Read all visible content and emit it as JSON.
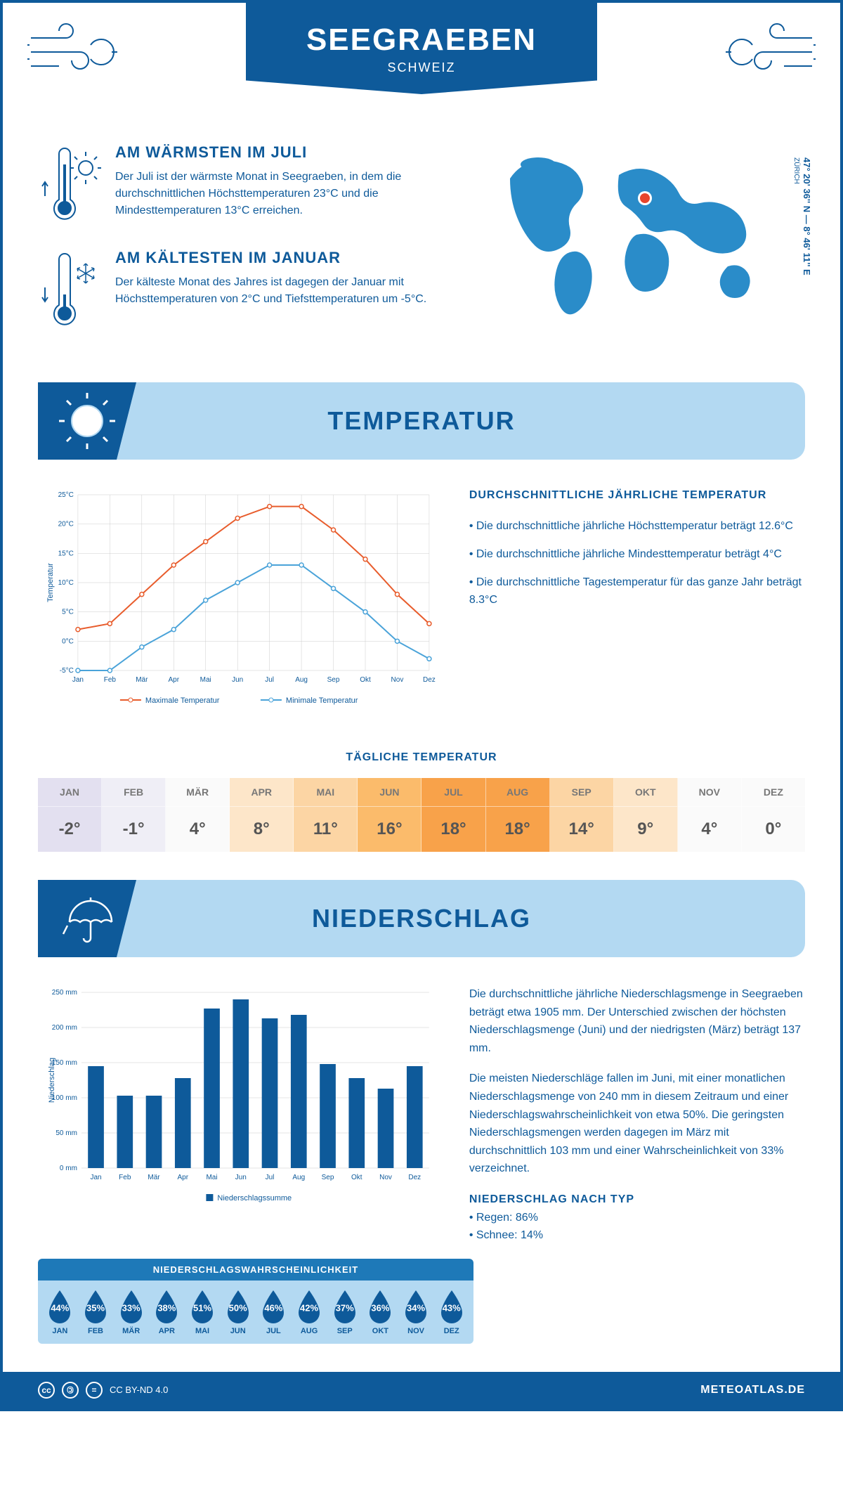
{
  "header": {
    "title": "SEEGRAEBEN",
    "subtitle": "SCHWEIZ",
    "coords": "47° 20' 36'' N — 8° 46' 11'' E",
    "coords_city": "ZÜRICH"
  },
  "warmest": {
    "title": "AM WÄRMSTEN IM JULI",
    "desc": "Der Juli ist der wärmste Monat in Seegraeben, in dem die durchschnittlichen Höchsttemperaturen 23°C und die Mindesttemperaturen 13°C erreichen."
  },
  "coldest": {
    "title": "AM KÄLTESTEN IM JANUAR",
    "desc": "Der kälteste Monat des Jahres ist dagegen der Januar mit Höchsttemperaturen von 2°C und Tiefsttemperaturen um -5°C."
  },
  "temp_section": {
    "title": "TEMPERATUR",
    "chart": {
      "type": "line",
      "months": [
        "Jan",
        "Feb",
        "Mär",
        "Apr",
        "Mai",
        "Jun",
        "Jul",
        "Aug",
        "Sep",
        "Okt",
        "Nov",
        "Dez"
      ],
      "max_values": [
        2,
        3,
        8,
        13,
        17,
        21,
        23,
        23,
        19,
        14,
        8,
        3
      ],
      "min_values": [
        -5,
        -5,
        -1,
        2,
        7,
        10,
        13,
        13,
        9,
        5,
        0,
        -3
      ],
      "max_color": "#e85c2c",
      "min_color": "#4aa3d9",
      "ylim": [
        -5,
        25
      ],
      "ytick_step": 5,
      "ylabel": "Temperatur",
      "legend_max": "Maximale Temperatur",
      "legend_min": "Minimale Temperatur",
      "grid_color": "#cccccc",
      "background": "#ffffff",
      "line_width": 2,
      "marker": "circle"
    },
    "text_title": "DURCHSCHNITTLICHE JÄHRLICHE TEMPERATUR",
    "bullets": [
      "Die durchschnittliche jährliche Höchsttemperatur beträgt 12.6°C",
      "Die durchschnittliche jährliche Mindesttemperatur beträgt 4°C",
      "Die durchschnittliche Tagestemperatur für das ganze Jahr beträgt 8.3°C"
    ]
  },
  "daily": {
    "title": "TÄGLICHE TEMPERATUR",
    "months": [
      "JAN",
      "FEB",
      "MÄR",
      "APR",
      "MAI",
      "JUN",
      "JUL",
      "AUG",
      "SEP",
      "OKT",
      "NOV",
      "DEZ"
    ],
    "temps": [
      "-2°",
      "-1°",
      "4°",
      "8°",
      "11°",
      "16°",
      "18°",
      "18°",
      "14°",
      "9°",
      "4°",
      "0°"
    ],
    "colors": [
      "#e3e0f0",
      "#efeef6",
      "#fafafa",
      "#fde6c9",
      "#fcd5a4",
      "#fbbb6b",
      "#f8a24a",
      "#f8a24a",
      "#fcd5a4",
      "#fde6c9",
      "#fafafa",
      "#fafafa"
    ]
  },
  "precip_section": {
    "title": "NIEDERSCHLAG",
    "chart": {
      "type": "bar",
      "months": [
        "Jan",
        "Feb",
        "Mär",
        "Apr",
        "Mai",
        "Jun",
        "Jul",
        "Aug",
        "Sep",
        "Okt",
        "Nov",
        "Dez"
      ],
      "values": [
        145,
        103,
        103,
        128,
        227,
        240,
        213,
        218,
        148,
        128,
        113,
        145
      ],
      "bar_color": "#0e5a9a",
      "ylim": [
        0,
        250
      ],
      "ytick_step": 50,
      "ylabel": "Niederschlag",
      "legend": "Niederschlagssumme",
      "grid_color": "#cccccc",
      "bar_width": 0.55
    },
    "para1": "Die durchschnittliche jährliche Niederschlagsmenge in Seegraeben beträgt etwa 1905 mm. Der Unterschied zwischen der höchsten Niederschlagsmenge (Juni) und der niedrigsten (März) beträgt 137 mm.",
    "para2": "Die meisten Niederschläge fallen im Juni, mit einer monatlichen Niederschlagsmenge von 240 mm in diesem Zeitraum und einer Niederschlagswahrscheinlichkeit von etwa 50%. Die geringsten Niederschlagsmengen werden dagegen im März mit durchschnittlich 103 mm und einer Wahrscheinlichkeit von 33% verzeichnet.",
    "type_title": "NIEDERSCHLAG NACH TYP",
    "types": [
      "Regen: 86%",
      "Schnee: 14%"
    ]
  },
  "probability": {
    "title": "NIEDERSCHLAGSWAHRSCHEINLICHKEIT",
    "months": [
      "JAN",
      "FEB",
      "MÄR",
      "APR",
      "MAI",
      "JUN",
      "JUL",
      "AUG",
      "SEP",
      "OKT",
      "NOV",
      "DEZ"
    ],
    "values": [
      "44%",
      "35%",
      "33%",
      "38%",
      "51%",
      "50%",
      "46%",
      "42%",
      "37%",
      "36%",
      "34%",
      "43%"
    ],
    "drop_color": "#0e5a9a"
  },
  "footer": {
    "license": "CC BY-ND 4.0",
    "brand": "METEOATLAS.DE"
  }
}
